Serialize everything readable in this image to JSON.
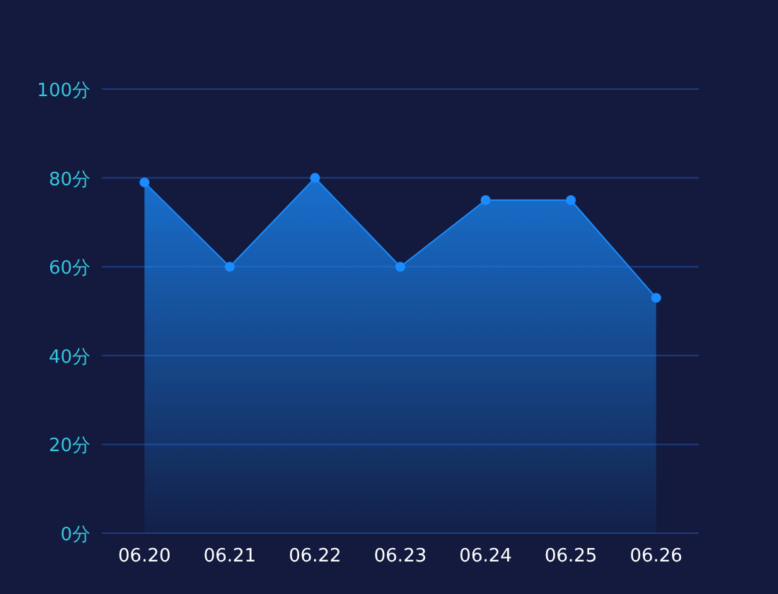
{
  "chart_data": {
    "type": "area",
    "categories": [
      "06.20",
      "06.21",
      "06.22",
      "06.23",
      "06.24",
      "06.25",
      "06.26"
    ],
    "series": [
      {
        "color": "#1a8cff",
        "values": [
          79,
          60,
          80,
          60,
          75,
          75,
          53
        ]
      }
    ],
    "ylim": [
      0,
      100
    ],
    "yticks": [
      {
        "value": 0,
        "label": "0分"
      },
      {
        "value": 20,
        "label": "20分"
      },
      {
        "value": 40,
        "label": "40分"
      },
      {
        "value": 60,
        "label": "60分"
      },
      {
        "value": 80,
        "label": "80分"
      },
      {
        "value": 100,
        "label": "100分"
      }
    ],
    "grid": "y",
    "marker": "circle"
  }
}
